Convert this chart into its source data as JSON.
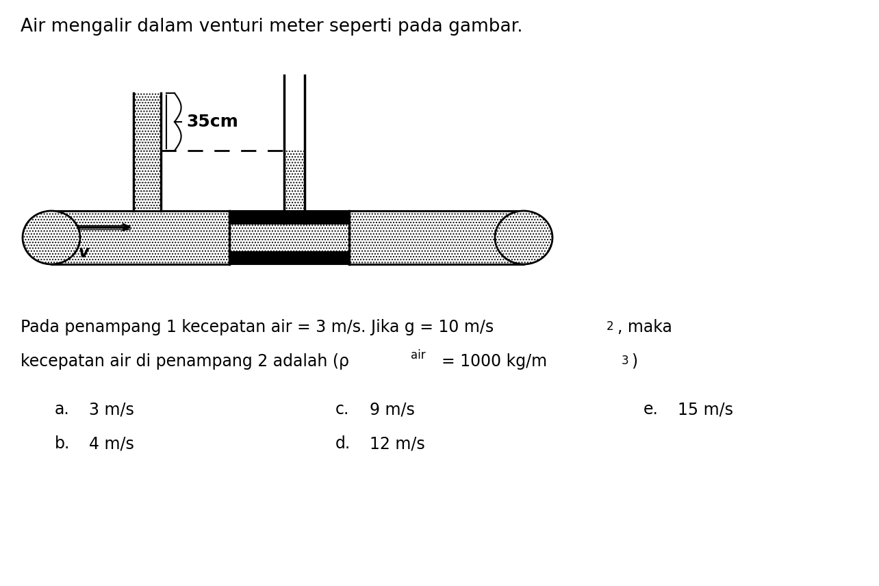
{
  "title": "Air mengalir dalam venturi meter seperti pada gambar.",
  "title_fontsize": 19,
  "body_fontsize": 17,
  "option_fontsize": 17,
  "bg_color": "#ffffff",
  "fg_color": "#000000",
  "label_35cm": "35cm",
  "label_v": "v",
  "options": [
    {
      "label": "a.",
      "value": "3 m/s"
    },
    {
      "label": "b.",
      "value": "4 m/s"
    },
    {
      "label": "c.",
      "value": "9 m/s"
    },
    {
      "label": "d.",
      "value": "12 m/s"
    },
    {
      "label": "e.",
      "value": "15 m/s"
    }
  ]
}
